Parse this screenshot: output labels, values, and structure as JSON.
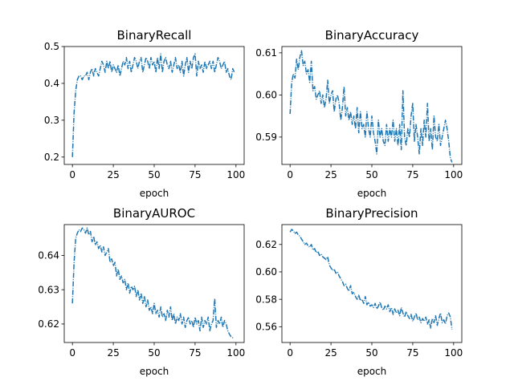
{
  "chart_data": [
    {
      "type": "line",
      "title": "BinaryRecall",
      "xlabel": "epoch",
      "ylabel": "",
      "xlim": [
        -5,
        105
      ],
      "ylim": [
        0.18,
        0.5
      ],
      "xticks": [
        0,
        25,
        50,
        75,
        100
      ],
      "yticks": [
        0.2,
        0.3,
        0.4,
        0.5
      ],
      "ytick_labels": [
        "0.2",
        "0.3",
        "0.4",
        "0.5"
      ],
      "color": "#1f77b4",
      "line_style": "dashdot",
      "grid": false,
      "series": [
        {
          "x": [
            0,
            1,
            2,
            3,
            4,
            5,
            6,
            7,
            8,
            9,
            10,
            11,
            12,
            13,
            14,
            15,
            16,
            17,
            18,
            19,
            20,
            21,
            22,
            23,
            24,
            25,
            26,
            27,
            28,
            29,
            30,
            31,
            32,
            33,
            34,
            35,
            36,
            37,
            38,
            39,
            40,
            41,
            42,
            43,
            44,
            45,
            46,
            47,
            48,
            49,
            50,
            51,
            52,
            53,
            54,
            55,
            56,
            57,
            58,
            59,
            60,
            61,
            62,
            63,
            64,
            65,
            66,
            67,
            68,
            69,
            70,
            71,
            72,
            73,
            74,
            75,
            76,
            77,
            78,
            79,
            80,
            81,
            82,
            83,
            84,
            85,
            86,
            87,
            88,
            89,
            90,
            91,
            92,
            93,
            94,
            95,
            96,
            97,
            98,
            99
          ],
          "values": [
            0.2,
            0.32,
            0.38,
            0.41,
            0.42,
            0.42,
            0.41,
            0.42,
            0.42,
            0.43,
            0.41,
            0.43,
            0.44,
            0.42,
            0.44,
            0.43,
            0.42,
            0.44,
            0.46,
            0.45,
            0.43,
            0.46,
            0.44,
            0.46,
            0.43,
            0.45,
            0.44,
            0.43,
            0.45,
            0.42,
            0.44,
            0.46,
            0.45,
            0.47,
            0.44,
            0.46,
            0.43,
            0.45,
            0.47,
            0.46,
            0.44,
            0.46,
            0.47,
            0.43,
            0.45,
            0.47,
            0.46,
            0.44,
            0.47,
            0.45,
            0.46,
            0.43,
            0.47,
            0.44,
            0.48,
            0.43,
            0.46,
            0.47,
            0.45,
            0.44,
            0.46,
            0.43,
            0.45,
            0.47,
            0.44,
            0.45,
            0.43,
            0.46,
            0.42,
            0.45,
            0.47,
            0.43,
            0.46,
            0.44,
            0.47,
            0.48,
            0.42,
            0.46,
            0.44,
            0.45,
            0.43,
            0.46,
            0.44,
            0.45,
            0.46,
            0.44,
            0.46,
            0.43,
            0.45,
            0.47,
            0.46,
            0.44,
            0.45,
            0.46,
            0.43,
            0.44,
            0.42,
            0.41,
            0.44,
            0.43
          ]
        }
      ]
    },
    {
      "type": "line",
      "title": "BinaryAccuracy",
      "xlabel": "epoch",
      "ylabel": "",
      "xlim": [
        -5,
        105
      ],
      "ylim": [
        0.5835,
        0.6115
      ],
      "xticks": [
        0,
        25,
        50,
        75,
        100
      ],
      "yticks": [
        0.59,
        0.6,
        0.61
      ],
      "ytick_labels": [
        "0.59",
        "0.60",
        "0.61"
      ],
      "color": "#1f77b4",
      "line_style": "dashdot",
      "grid": false,
      "series": [
        {
          "x": [
            0,
            1,
            2,
            3,
            4,
            5,
            6,
            7,
            8,
            9,
            10,
            11,
            12,
            13,
            14,
            15,
            16,
            17,
            18,
            19,
            20,
            21,
            22,
            23,
            24,
            25,
            26,
            27,
            28,
            29,
            30,
            31,
            32,
            33,
            34,
            35,
            36,
            37,
            38,
            39,
            40,
            41,
            42,
            43,
            44,
            45,
            46,
            47,
            48,
            49,
            50,
            51,
            52,
            53,
            54,
            55,
            56,
            57,
            58,
            59,
            60,
            61,
            62,
            63,
            64,
            65,
            66,
            67,
            68,
            69,
            70,
            71,
            72,
            73,
            74,
            75,
            76,
            77,
            78,
            79,
            80,
            81,
            82,
            83,
            84,
            85,
            86,
            87,
            88,
            89,
            90,
            91,
            92,
            93,
            94,
            95,
            96,
            97,
            98,
            99
          ],
          "values": [
            0.5955,
            0.603,
            0.605,
            0.604,
            0.6085,
            0.606,
            0.609,
            0.6105,
            0.607,
            0.608,
            0.605,
            0.606,
            0.603,
            0.608,
            0.601,
            0.602,
            0.599,
            0.6,
            0.601,
            0.598,
            0.6,
            0.597,
            0.599,
            0.6035,
            0.598,
            0.6,
            0.601,
            0.596,
            0.599,
            0.6,
            0.598,
            0.594,
            0.597,
            0.602,
            0.595,
            0.597,
            0.594,
            0.596,
            0.593,
            0.595,
            0.592,
            0.597,
            0.591,
            0.596,
            0.592,
            0.593,
            0.59,
            0.596,
            0.592,
            0.59,
            0.595,
            0.591,
            0.589,
            0.586,
            0.594,
            0.59,
            0.592,
            0.589,
            0.588,
            0.593,
            0.589,
            0.592,
            0.59,
            0.594,
            0.589,
            0.592,
            0.588,
            0.593,
            0.587,
            0.601,
            0.59,
            0.588,
            0.592,
            0.59,
            0.595,
            0.598,
            0.589,
            0.593,
            0.59,
            0.586,
            0.592,
            0.588,
            0.594,
            0.59,
            0.598,
            0.589,
            0.592,
            0.587,
            0.595,
            0.59,
            0.589,
            0.593,
            0.588,
            0.59,
            0.592,
            0.594,
            0.592,
            0.589,
            0.585,
            0.584
          ]
        }
      ]
    },
    {
      "type": "line",
      "title": "BinaryAUROC",
      "xlabel": "epoch",
      "ylabel": "",
      "xlim": [
        -5,
        105
      ],
      "ylim": [
        0.6146,
        0.649
      ],
      "xticks": [
        0,
        25,
        50,
        75,
        100
      ],
      "yticks": [
        0.62,
        0.63,
        0.64
      ],
      "ytick_labels": [
        "0.62",
        "0.63",
        "0.64"
      ],
      "color": "#1f77b4",
      "line_style": "dashdot",
      "grid": false,
      "series": [
        {
          "x": [
            0,
            1,
            2,
            3,
            4,
            5,
            6,
            7,
            8,
            9,
            10,
            11,
            12,
            13,
            14,
            15,
            16,
            17,
            18,
            19,
            20,
            21,
            22,
            23,
            24,
            25,
            26,
            27,
            28,
            29,
            30,
            31,
            32,
            33,
            34,
            35,
            36,
            37,
            38,
            39,
            40,
            41,
            42,
            43,
            44,
            45,
            46,
            47,
            48,
            49,
            50,
            51,
            52,
            53,
            54,
            55,
            56,
            57,
            58,
            59,
            60,
            61,
            62,
            63,
            64,
            65,
            66,
            67,
            68,
            69,
            70,
            71,
            72,
            73,
            74,
            75,
            76,
            77,
            78,
            79,
            80,
            81,
            82,
            83,
            84,
            85,
            86,
            87,
            88,
            89,
            90,
            91,
            92,
            93,
            94,
            95,
            96,
            97,
            98,
            99
          ],
          "values": [
            0.626,
            0.638,
            0.645,
            0.6465,
            0.6475,
            0.647,
            0.648,
            0.6475,
            0.6465,
            0.648,
            0.646,
            0.647,
            0.644,
            0.6455,
            0.643,
            0.644,
            0.642,
            0.643,
            0.641,
            0.6425,
            0.64,
            0.641,
            0.642,
            0.638,
            0.639,
            0.637,
            0.638,
            0.634,
            0.636,
            0.633,
            0.634,
            0.632,
            0.633,
            0.63,
            0.632,
            0.629,
            0.631,
            0.63,
            0.631,
            0.628,
            0.63,
            0.627,
            0.629,
            0.626,
            0.628,
            0.625,
            0.627,
            0.624,
            0.625,
            0.623,
            0.626,
            0.623,
            0.624,
            0.622,
            0.625,
            0.622,
            0.623,
            0.621,
            0.624,
            0.622,
            0.625,
            0.621,
            0.623,
            0.62,
            0.622,
            0.621,
            0.623,
            0.62,
            0.622,
            0.619,
            0.621,
            0.622,
            0.62,
            0.621,
            0.619,
            0.622,
            0.62,
            0.621,
            0.618,
            0.622,
            0.619,
            0.621,
            0.62,
            0.622,
            0.618,
            0.62,
            0.621,
            0.6275,
            0.619,
            0.621,
            0.62,
            0.622,
            0.619,
            0.621,
            0.62,
            0.618,
            0.617,
            0.6163,
            0.616,
            0.616
          ]
        }
      ]
    },
    {
      "type": "line",
      "title": "BinaryPrecision",
      "xlabel": "epoch",
      "ylabel": "",
      "xlim": [
        -5,
        105
      ],
      "ylim": [
        0.5485,
        0.6345
      ],
      "xticks": [
        0,
        25,
        50,
        75,
        100
      ],
      "yticks": [
        0.56,
        0.58,
        0.6,
        0.62
      ],
      "ytick_labels": [
        "0.56",
        "0.58",
        "0.60",
        "0.62"
      ],
      "color": "#1f77b4",
      "line_style": "dashdot",
      "grid": false,
      "series": [
        {
          "x": [
            0,
            1,
            2,
            3,
            4,
            5,
            6,
            7,
            8,
            9,
            10,
            11,
            12,
            13,
            14,
            15,
            16,
            17,
            18,
            19,
            20,
            21,
            22,
            23,
            24,
            25,
            26,
            27,
            28,
            29,
            30,
            31,
            32,
            33,
            34,
            35,
            36,
            37,
            38,
            39,
            40,
            41,
            42,
            43,
            44,
            45,
            46,
            47,
            48,
            49,
            50,
            51,
            52,
            53,
            54,
            55,
            56,
            57,
            58,
            59,
            60,
            61,
            62,
            63,
            64,
            65,
            66,
            67,
            68,
            69,
            70,
            71,
            72,
            73,
            74,
            75,
            76,
            77,
            78,
            79,
            80,
            81,
            82,
            83,
            84,
            85,
            86,
            87,
            88,
            89,
            90,
            91,
            92,
            93,
            94,
            95,
            96,
            97,
            98,
            99
          ],
          "values": [
            0.629,
            0.631,
            0.63,
            0.628,
            0.629,
            0.627,
            0.626,
            0.624,
            0.622,
            0.62,
            0.621,
            0.619,
            0.618,
            0.62,
            0.616,
            0.617,
            0.614,
            0.615,
            0.612,
            0.613,
            0.611,
            0.61,
            0.609,
            0.611,
            0.605,
            0.603,
            0.601,
            0.602,
            0.599,
            0.6,
            0.597,
            0.595,
            0.593,
            0.59,
            0.591,
            0.588,
            0.586,
            0.59,
            0.584,
            0.585,
            0.582,
            0.58,
            0.583,
            0.579,
            0.58,
            0.577,
            0.582,
            0.576,
            0.578,
            0.575,
            0.576,
            0.574,
            0.577,
            0.573,
            0.575,
            0.578,
            0.574,
            0.572,
            0.575,
            0.573,
            0.576,
            0.571,
            0.574,
            0.569,
            0.573,
            0.57,
            0.572,
            0.568,
            0.574,
            0.57,
            0.567,
            0.571,
            0.568,
            0.566,
            0.569,
            0.564,
            0.567,
            0.57,
            0.565,
            0.567,
            0.563,
            0.566,
            0.564,
            0.567,
            0.562,
            0.565,
            0.559,
            0.566,
            0.563,
            0.568,
            0.561,
            0.566,
            0.57,
            0.563,
            0.565,
            0.562,
            0.568,
            0.57,
            0.567,
            0.558
          ]
        }
      ]
    }
  ]
}
